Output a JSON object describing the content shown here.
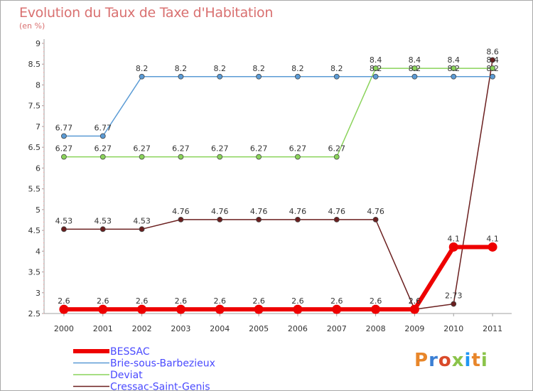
{
  "title": "Evolution du Taux de Taxe d'Habitation",
  "subtitle": "(en %)",
  "logo": {
    "text": "Proxiti",
    "colors": [
      "#e8862a",
      "#3b7fd4",
      "#d94a2a",
      "#8bc34a",
      "#2196f3",
      "#e8862a",
      "#8bc34a"
    ]
  },
  "chart_data": {
    "type": "line",
    "x": [
      "2000",
      "2001",
      "2002",
      "2003",
      "2004",
      "2005",
      "2006",
      "2007",
      "2008",
      "2009",
      "2010",
      "2011"
    ],
    "ylim": [
      2.5,
      9
    ],
    "yticks": [
      "2.5",
      "3",
      "3.5",
      "4",
      "4.5",
      "5",
      "5.5",
      "6",
      "6.5",
      "7",
      "7.5",
      "8",
      "8.5",
      "9"
    ],
    "grid": false,
    "legend_position": "bottom-left",
    "series": [
      {
        "name": "Cressac-Saint-Genis",
        "color": "#6b1f1f",
        "values": [
          4.53,
          4.53,
          4.53,
          4.76,
          4.76,
          4.76,
          4.76,
          4.76,
          4.76,
          2.6,
          2.73,
          8.6
        ],
        "labels": [
          "4.53",
          "4.53",
          "4.53",
          "4.76",
          "4.76",
          "4.76",
          "4.76",
          "4.76",
          "4.76",
          "2.6",
          "2.73",
          "8.6"
        ]
      },
      {
        "name": "Deviat",
        "color": "#8ad35a",
        "values": [
          6.27,
          6.27,
          6.27,
          6.27,
          6.27,
          6.27,
          6.27,
          6.27,
          8.4,
          8.4,
          8.4,
          8.4
        ],
        "labels": [
          "6.27",
          "6.27",
          "6.27",
          "6.27",
          "6.27",
          "6.27",
          "6.27",
          "6.27",
          "8.4",
          "8.4",
          "8.4",
          "8.4"
        ]
      },
      {
        "name": "Brie-sous-Barbezieux",
        "color": "#5b9bd5",
        "values": [
          6.77,
          6.77,
          8.2,
          8.2,
          8.2,
          8.2,
          8.2,
          8.2,
          8.2,
          8.2,
          8.2,
          8.2
        ],
        "labels": [
          "6.77",
          "6.77",
          "8.2",
          "8.2",
          "8.2",
          "8.2",
          "8.2",
          "8.2",
          "8.2",
          "8.2",
          "8.2",
          "8.2"
        ]
      },
      {
        "name": "BESSAC",
        "color": "#ee0000",
        "values": [
          2.6,
          2.6,
          2.6,
          2.6,
          2.6,
          2.6,
          2.6,
          2.6,
          2.6,
          2.6,
          4.1,
          4.1
        ],
        "labels": [
          "2.6",
          "2.6",
          "2.6",
          "2.6",
          "2.6",
          "2.6",
          "2.6",
          "2.6",
          "2.6",
          "2.6",
          "4.1",
          "4.1"
        ]
      }
    ],
    "legend": [
      "BESSAC",
      "Brie-sous-Barbezieux",
      "Deviat",
      "Cressac-Saint-Genis"
    ]
  }
}
